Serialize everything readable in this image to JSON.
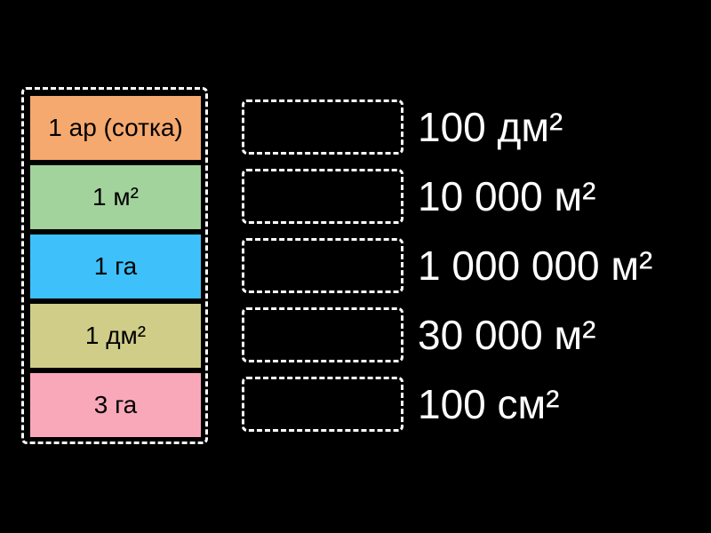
{
  "cards": [
    {
      "label": "1 ар (сотка)",
      "color": "#F5A96E"
    },
    {
      "label": "1 м²",
      "color": "#A3D39C"
    },
    {
      "label": "1 га",
      "color": "#3EC1FA"
    },
    {
      "label": "1 дм²",
      "color": "#CFCD88"
    },
    {
      "label": "3 га",
      "color": "#F9A8BA"
    }
  ],
  "answers": [
    {
      "label": "100 дм²"
    },
    {
      "label": "10 000 м²"
    },
    {
      "label": "1 000 000 м²"
    },
    {
      "label": "30 000 м²"
    },
    {
      "label": "100 см²"
    }
  ]
}
